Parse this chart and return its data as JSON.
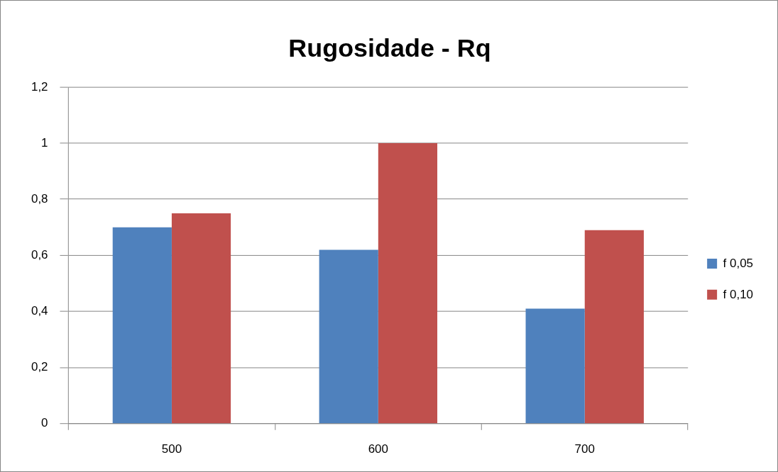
{
  "chart_data": {
    "type": "bar",
    "title": "Rugosidade - Rq",
    "categories": [
      "500",
      "600",
      "700"
    ],
    "series": [
      {
        "name": "f 0,05",
        "color": "#4f81bd",
        "values": [
          0.7,
          0.62,
          0.41
        ]
      },
      {
        "name": "f 0,10",
        "color": "#c0504d",
        "values": [
          0.75,
          1,
          0.69
        ]
      }
    ],
    "ylim": [
      0,
      1.2
    ],
    "yticks": [
      0,
      {
        "value": 0.2,
        "label": "0,2"
      },
      {
        "value": 0.4,
        "label": "0,4"
      },
      {
        "value": 0.6,
        "label": "0,6"
      },
      {
        "value": 0.8,
        "label": "0,8"
      },
      1,
      {
        "value": 1.2,
        "label": "1,2"
      }
    ],
    "grid": "y",
    "legend": "right"
  }
}
